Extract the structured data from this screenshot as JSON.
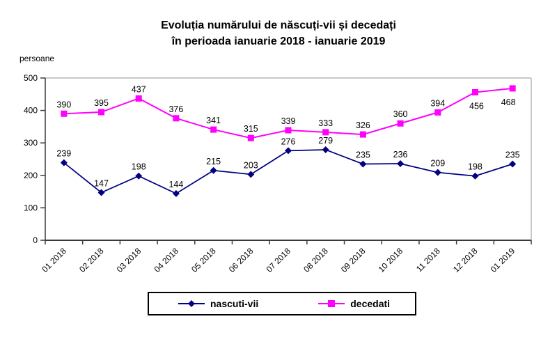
{
  "title": {
    "line1": "Evoluția numărului de născuți-vii și decedați",
    "line2": "în perioada ianuarie 2018 - ianuarie 2019"
  },
  "y_axis_unit": "persoane",
  "chart_data": {
    "type": "line",
    "categories": [
      "01 2018",
      "02 2018",
      "03 2018",
      "04 2018",
      "05 2018",
      "06 2018",
      "07 2018",
      "08 2018",
      "09 2018",
      "10 2018",
      "11 2018",
      "12 2018",
      "01 2019"
    ],
    "series": [
      {
        "name": "nascuti-vii",
        "color": "#000080",
        "marker": "diamond",
        "values": [
          239,
          147,
          198,
          144,
          215,
          203,
          276,
          279,
          235,
          236,
          209,
          198,
          235
        ],
        "label_positions": [
          "above",
          "above",
          "above",
          "above",
          "above",
          "above",
          "above",
          "above",
          "above",
          "above",
          "above",
          "above",
          "above"
        ]
      },
      {
        "name": "decedati",
        "color": "#FF00FF",
        "marker": "square",
        "values": [
          390,
          395,
          437,
          376,
          341,
          315,
          339,
          333,
          326,
          360,
          394,
          456,
          468
        ],
        "label_positions": [
          "above",
          "above",
          "above",
          "above",
          "above",
          "above",
          "above",
          "above",
          "above",
          "above",
          "above",
          "below",
          "below"
        ]
      }
    ],
    "ylim": [
      0,
      500
    ],
    "y_ticks": [
      0,
      100,
      200,
      300,
      400,
      500
    ],
    "grid": "off",
    "data_labels": "on",
    "legend_position": "bottom",
    "axis_color": "#3a3a3a",
    "plot_border_color": "#a6a6a6",
    "label_color": "#000000"
  }
}
